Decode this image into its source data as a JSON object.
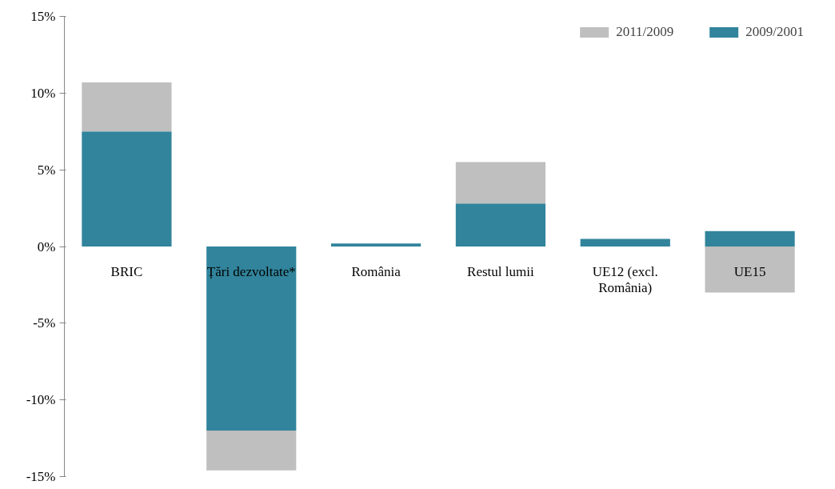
{
  "chart_data": {
    "type": "bar",
    "stacked": true,
    "categories": [
      "BRIC",
      "Țări dezvoltate*",
      "România",
      "Restul lumii",
      "UE12 (excl.\nRomânia)",
      "UE15"
    ],
    "series": [
      {
        "name": "2009/2001",
        "color": "#31849b",
        "values": [
          7.5,
          -12,
          0.2,
          2.8,
          0.5,
          1.0
        ]
      },
      {
        "name": "2011/2009",
        "color": "#bfbfbf",
        "values": [
          3.2,
          -2.6,
          0,
          2.7,
          0,
          -3.0
        ]
      }
    ],
    "ylim": [
      -15,
      15
    ],
    "yticks": [
      {
        "value": -15,
        "label": "-15%"
      },
      {
        "value": -10,
        "label": "-10%"
      },
      {
        "value": -5,
        "label": "-5%"
      },
      {
        "value": 0,
        "label": "0%"
      },
      {
        "value": 5,
        "label": "5%"
      },
      {
        "value": 10,
        "label": "10%"
      },
      {
        "value": 15,
        "label": "15%"
      }
    ],
    "legend": "top right",
    "grid": false
  }
}
